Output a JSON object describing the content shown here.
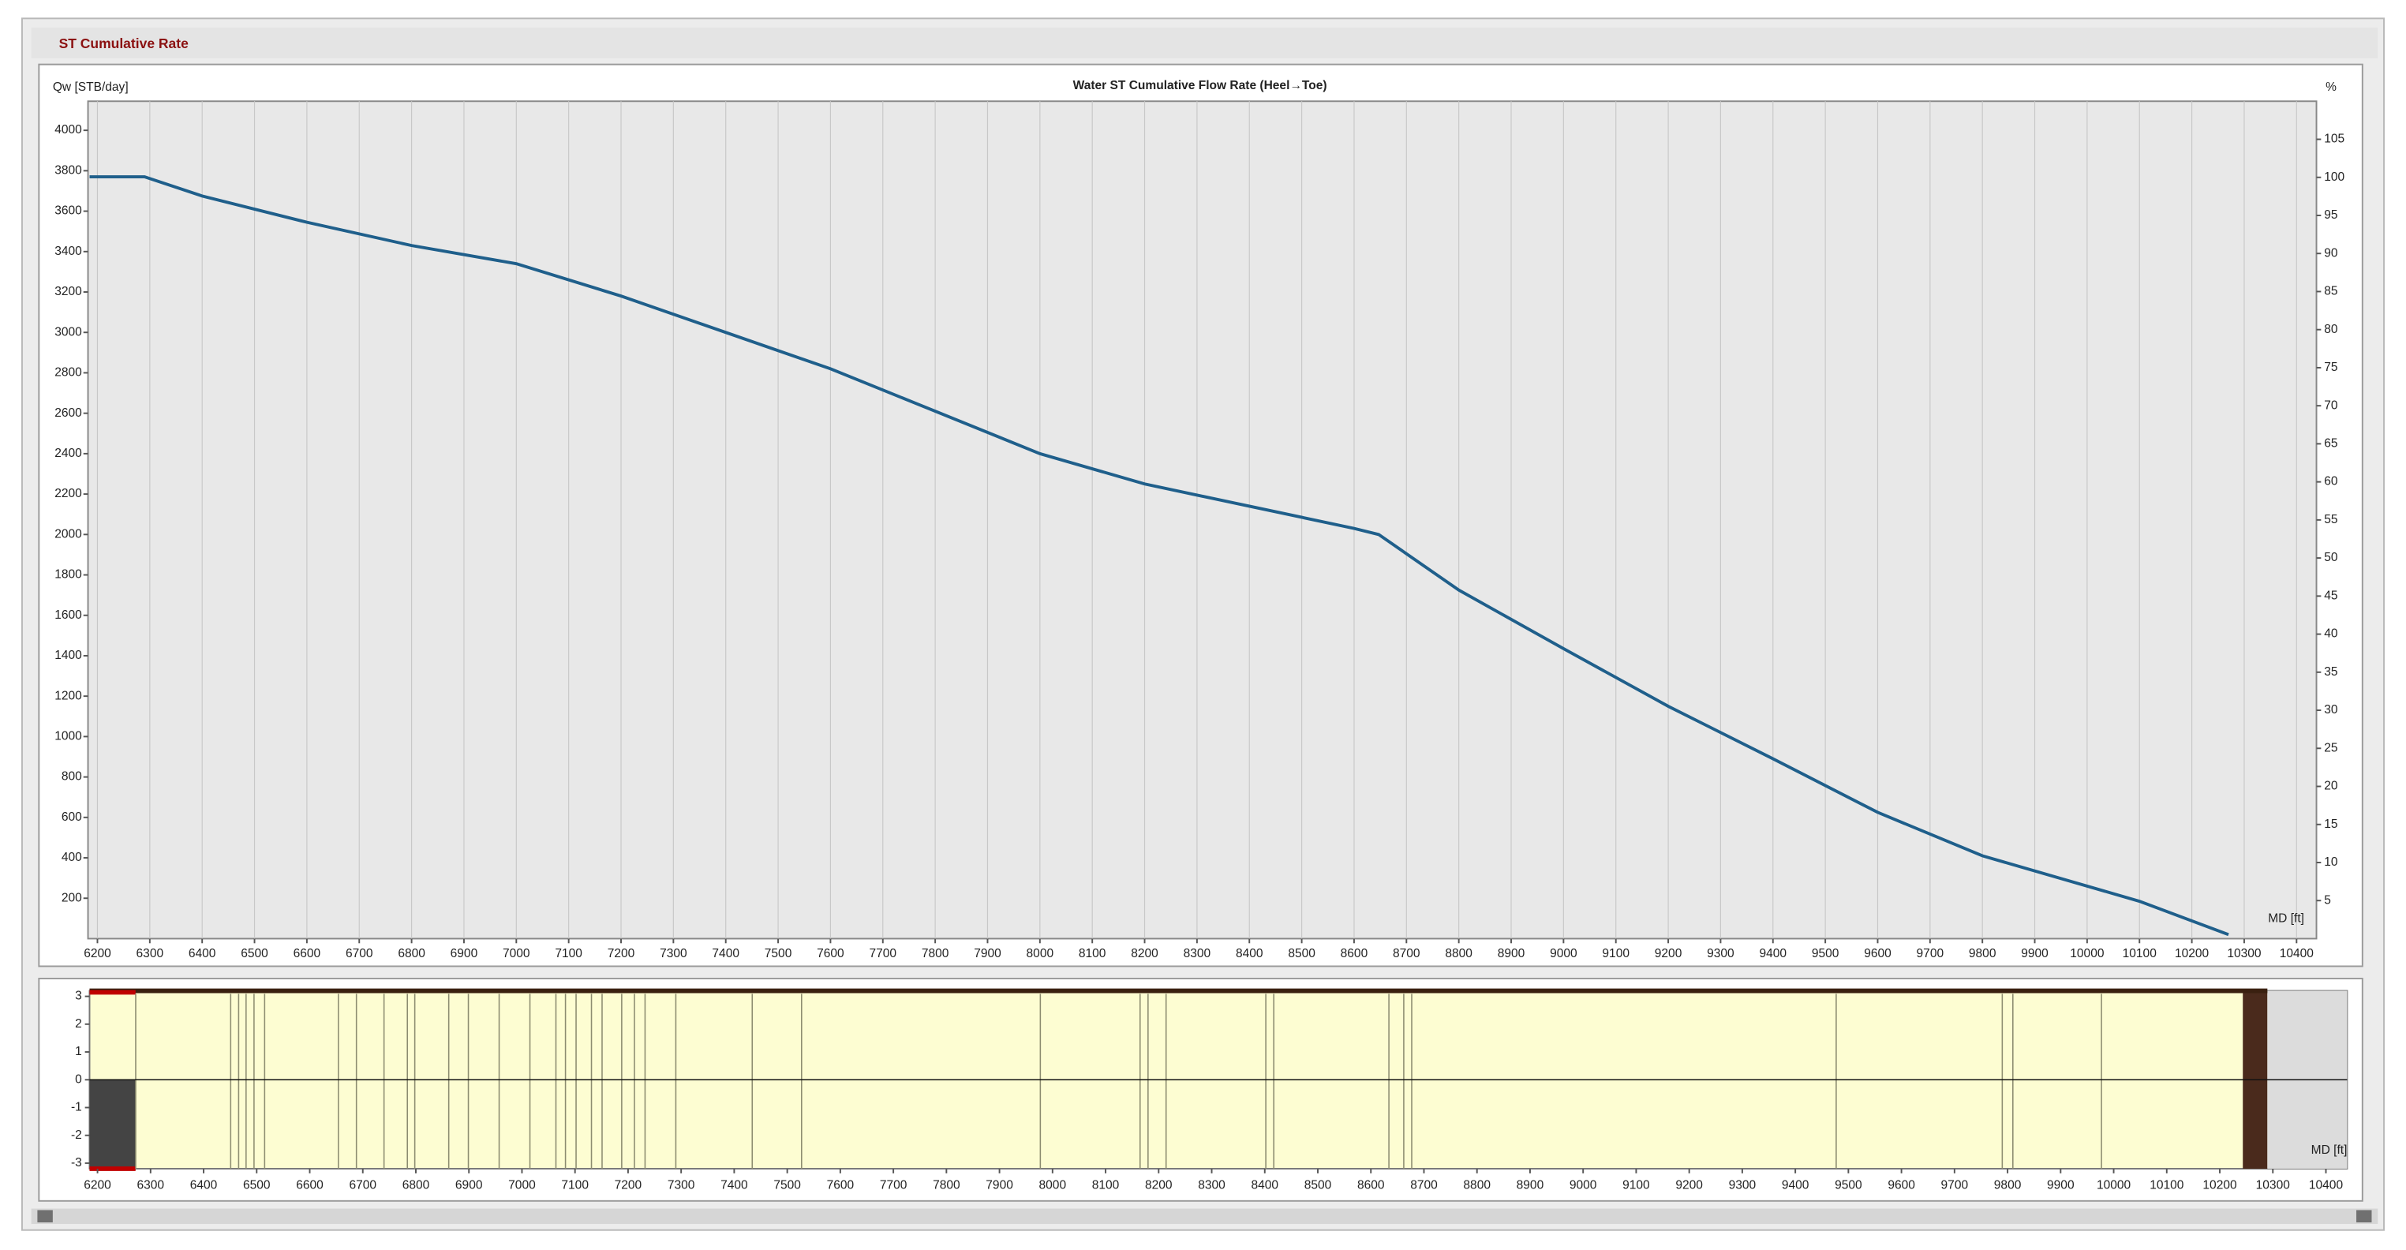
{
  "window": {
    "title": "ST Cumulative Rate"
  },
  "chart_data": [
    {
      "type": "line",
      "title": "Water ST Cumulative Flow Rate (Heel→Toe)",
      "y_label": "Qw [STB/day]",
      "y2_label": "%",
      "x_label": "MD [ft]",
      "x": [
        6185,
        6290,
        6400,
        6600,
        6800,
        7000,
        7200,
        7400,
        7600,
        7800,
        8000,
        8200,
        8400,
        8600,
        8647,
        8800,
        9000,
        9200,
        9400,
        9600,
        9800,
        10000,
        10100,
        10270
      ],
      "values": [
        3770,
        3770,
        3675,
        3545,
        3430,
        3340,
        3180,
        3000,
        2820,
        2610,
        2400,
        2250,
        2140,
        2030,
        2000,
        1725,
        1435,
        1150,
        890,
        625,
        410,
        260,
        185,
        20
      ],
      "color": "#1f5f8b",
      "xlim": [
        6182,
        10438
      ],
      "xticks": [
        6200,
        6300,
        6400,
        6500,
        6600,
        6700,
        6800,
        6900,
        7000,
        7100,
        7200,
        7300,
        7400,
        7500,
        7600,
        7700,
        7800,
        7900,
        8000,
        8100,
        8200,
        8300,
        8400,
        8500,
        8600,
        8700,
        8800,
        8900,
        9000,
        9100,
        9200,
        9300,
        9400,
        9500,
        9600,
        9700,
        9800,
        9900,
        10000,
        10100,
        10200,
        10300,
        10400
      ],
      "ylim": [
        0,
        4144
      ],
      "yticks": [
        200,
        400,
        600,
        800,
        1000,
        1200,
        1400,
        1600,
        1800,
        2000,
        2200,
        2400,
        2600,
        2800,
        3000,
        3200,
        3400,
        3600,
        3800,
        4000
      ],
      "y2lim": [
        0,
        110
      ],
      "y2ticks": [
        5,
        10,
        15,
        20,
        25,
        30,
        35,
        40,
        45,
        50,
        55,
        60,
        65,
        70,
        75,
        80,
        85,
        90,
        95,
        100,
        105
      ],
      "grid": true
    },
    {
      "type": "strip",
      "x_label": "MD [ft]",
      "x": [
        6272,
        6451,
        6466,
        6480,
        6495,
        6515,
        6654,
        6688,
        6740,
        6784,
        6798,
        6862,
        6899,
        6957,
        7015,
        7064,
        7082,
        7102,
        7131,
        7151,
        7188,
        7212,
        7232,
        7290,
        7434,
        7527,
        7977,
        8165,
        8180,
        8214,
        8402,
        8417,
        8634,
        8662,
        8677,
        9477,
        9790,
        9810,
        9977
      ],
      "color": "#8c8c70",
      "xlim": [
        6185,
        10440
      ],
      "xticks": [
        6200,
        6300,
        6400,
        6500,
        6600,
        6700,
        6800,
        6900,
        7000,
        7100,
        7200,
        7300,
        7400,
        7500,
        7600,
        7700,
        7800,
        7900,
        8000,
        8100,
        8200,
        8300,
        8400,
        8500,
        8600,
        8700,
        8800,
        8900,
        9000,
        9100,
        9200,
        9300,
        9400,
        9500,
        9600,
        9700,
        9800,
        9900,
        10000,
        10100,
        10200,
        10300,
        10400
      ],
      "ylim": [
        -3.2,
        3.2
      ],
      "yticks": [
        -3,
        -2,
        -1,
        0,
        1,
        2,
        3
      ]
    }
  ]
}
